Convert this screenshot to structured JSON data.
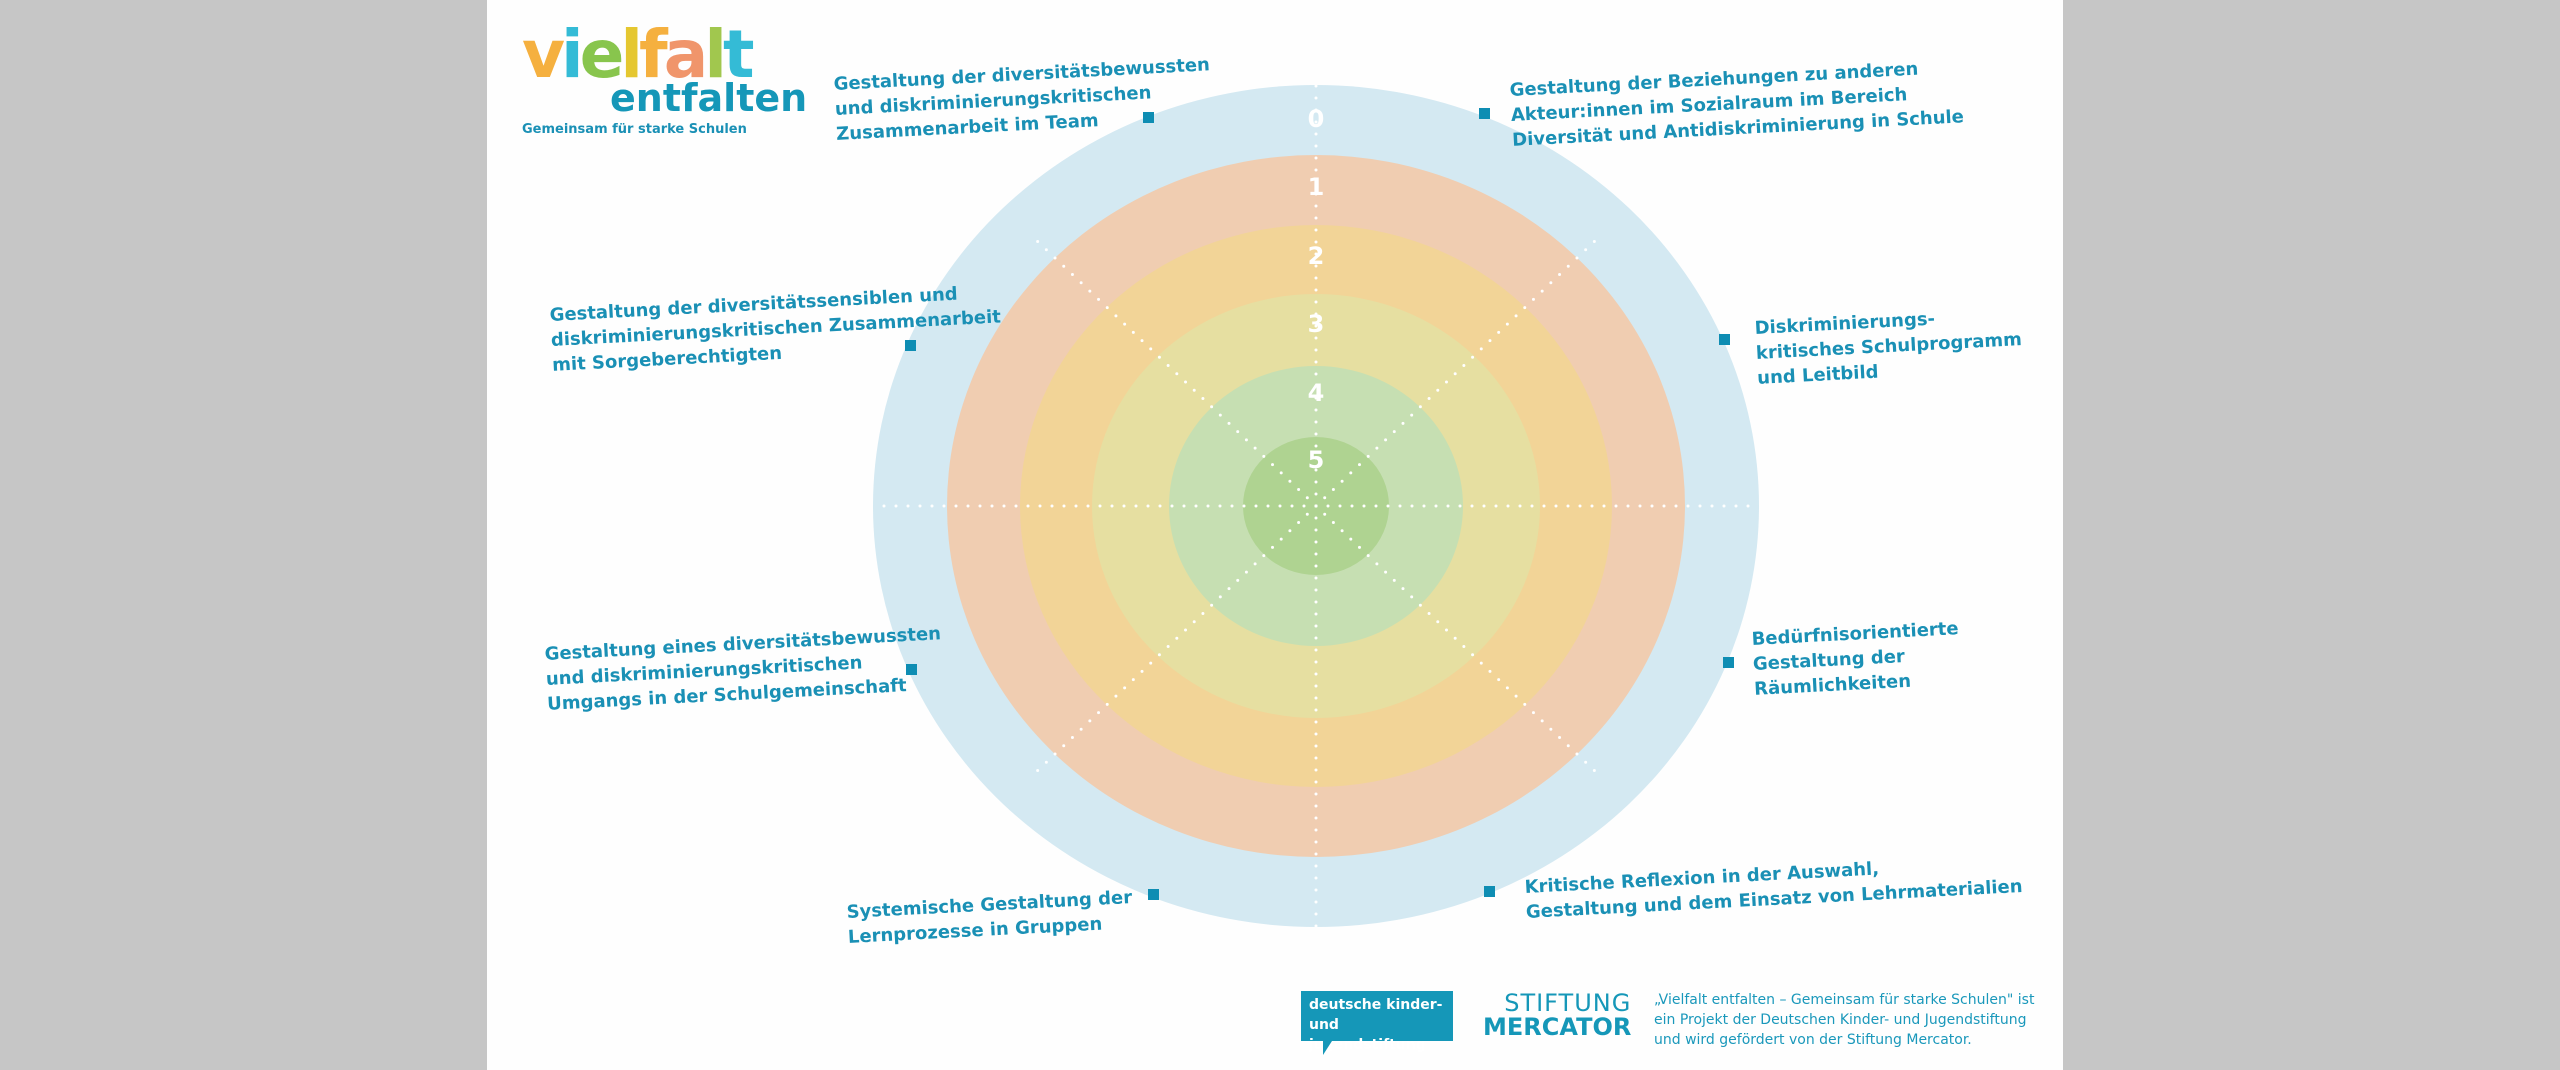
{
  "logo": {
    "word1": "vielfalt",
    "word2": "entfalten",
    "tagline": "Gemeinsam für starke Schulen",
    "letter_colors": [
      "#f5a82b",
      "#1fb4d2",
      "#7cbf3a",
      "#e3c21a",
      "#f5a82b",
      "#ef8a5c",
      "#98c23c",
      "#1fb4d2"
    ]
  },
  "diagram": {
    "levels": [
      "0",
      "1",
      "2",
      "3",
      "4",
      "5"
    ],
    "ring_colors": [
      "#d4e9f2",
      "#f0cdb1",
      "#f2d497",
      "#e6dfa1",
      "#c6dfb2",
      "#afd391"
    ],
    "spokes": 8,
    "dimensions": [
      {
        "lines": [
          "Gestaltung der diversitätsbewussten",
          "und diskriminierungskritischen",
          "Zusammenarbeit im Team"
        ]
      },
      {
        "lines": [
          "Gestaltung der Beziehungen zu anderen",
          "Akteur:innen im Sozialraum im Bereich",
          "Diversität und Antidiskriminierung in Schule"
        ]
      },
      {
        "lines": [
          "Diskriminierungs-",
          "kritisches Schulprogramm",
          "und Leitbild"
        ]
      },
      {
        "lines": [
          "Bedürfnisorientierte",
          "Gestaltung der",
          "Räumlichkeiten"
        ]
      },
      {
        "lines": [
          "Kritische Reflexion in der Auswahl,",
          "Gestaltung und dem Einsatz von Lehrmaterialien"
        ]
      },
      {
        "lines": [
          "Systemische Gestaltung der",
          "Lernprozesse in Gruppen"
        ]
      },
      {
        "lines": [
          "Gestaltung eines diversitätsbewussten",
          "und diskriminierungskritischen",
          "Umgangs in der Schulgemeinschaft"
        ]
      },
      {
        "lines": [
          "Gestaltung der diversitätssensiblen und",
          "diskriminierungskritischen Zusammenarbeit",
          "mit Sorgeberechtigten"
        ]
      }
    ]
  },
  "footer": {
    "dkjs_line1": "deutsche kinder-",
    "dkjs_line2": "und jugendstiftung",
    "mercator_line1": "STIFTUNG",
    "mercator_line2": "MERCATOR",
    "note_lines": [
      "„Vielfalt entfalten – Gemeinsam für starke Schulen\" ist",
      "ein Projekt der Deutschen Kinder- und Jugendstiftung",
      "und wird gefördert von der Stiftung Mercator."
    ]
  }
}
